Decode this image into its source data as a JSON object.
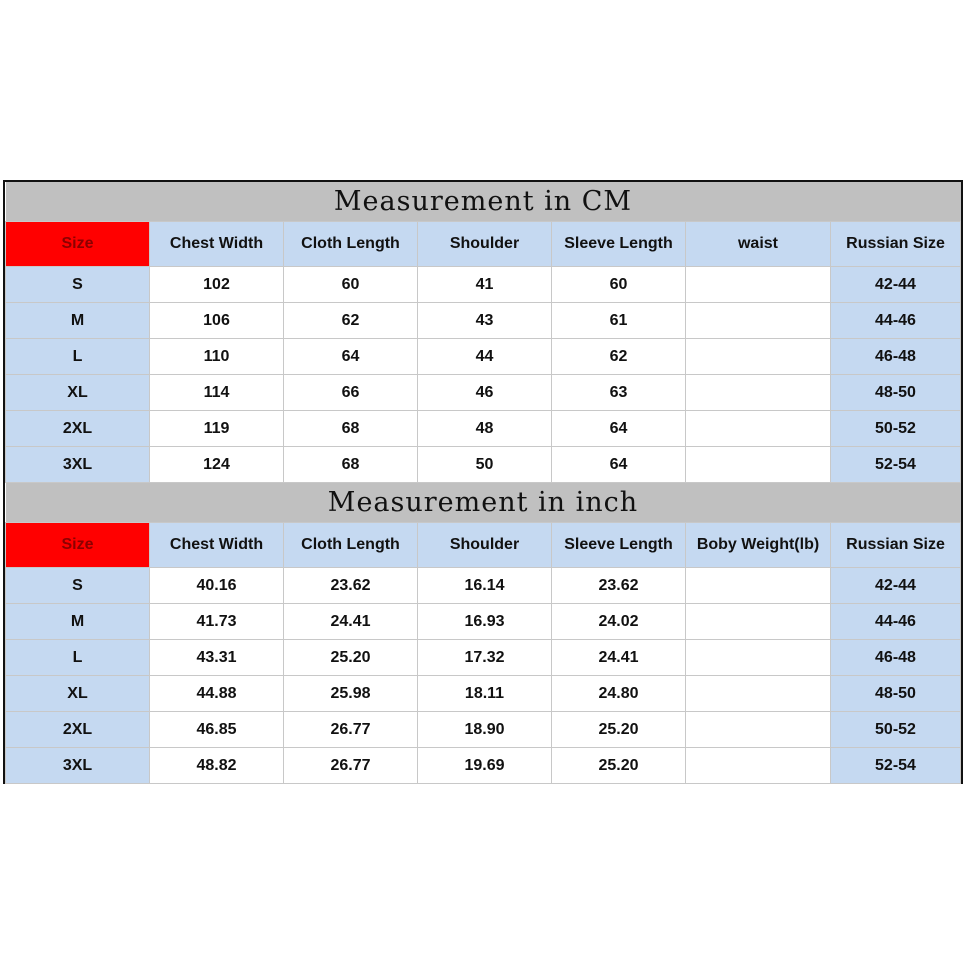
{
  "colors": {
    "title_bg": "#c0c0c0",
    "header_bg": "#c5d9f1",
    "size_header_bg": "#ff0000",
    "cell_bg": "#ffffff"
  },
  "tables": [
    {
      "title": "Measurement in CM",
      "headers": [
        "Size",
        "Chest Width",
        "Cloth Length",
        "Shoulder",
        "Sleeve Length",
        "waist",
        "Russian Size"
      ],
      "rows": [
        [
          "S",
          "102",
          "60",
          "41",
          "60",
          "",
          "42-44"
        ],
        [
          "M",
          "106",
          "62",
          "43",
          "61",
          "",
          "44-46"
        ],
        [
          "L",
          "110",
          "64",
          "44",
          "62",
          "",
          "46-48"
        ],
        [
          "XL",
          "114",
          "66",
          "46",
          "63",
          "",
          "48-50"
        ],
        [
          "2XL",
          "119",
          "68",
          "48",
          "64",
          "",
          "50-52"
        ],
        [
          "3XL",
          "124",
          "68",
          "50",
          "64",
          "",
          "52-54"
        ]
      ]
    },
    {
      "title": "Measurement in inch",
      "headers": [
        "Size",
        "Chest Width",
        "Cloth Length",
        "Shoulder",
        "Sleeve Length",
        "Boby Weight(lb)",
        "Russian Size"
      ],
      "rows": [
        [
          "S",
          "40.16",
          "23.62",
          "16.14",
          "23.62",
          "",
          "42-44"
        ],
        [
          "M",
          "41.73",
          "24.41",
          "16.93",
          "24.02",
          "",
          "44-46"
        ],
        [
          "L",
          "43.31",
          "25.20",
          "17.32",
          "24.41",
          "",
          "46-48"
        ],
        [
          "XL",
          "44.88",
          "25.98",
          "18.11",
          "24.80",
          "",
          "48-50"
        ],
        [
          "2XL",
          "46.85",
          "26.77",
          "18.90",
          "25.20",
          "",
          "50-52"
        ],
        [
          "3XL",
          "48.82",
          "26.77",
          "19.69",
          "25.20",
          "",
          "52-54"
        ]
      ]
    }
  ]
}
